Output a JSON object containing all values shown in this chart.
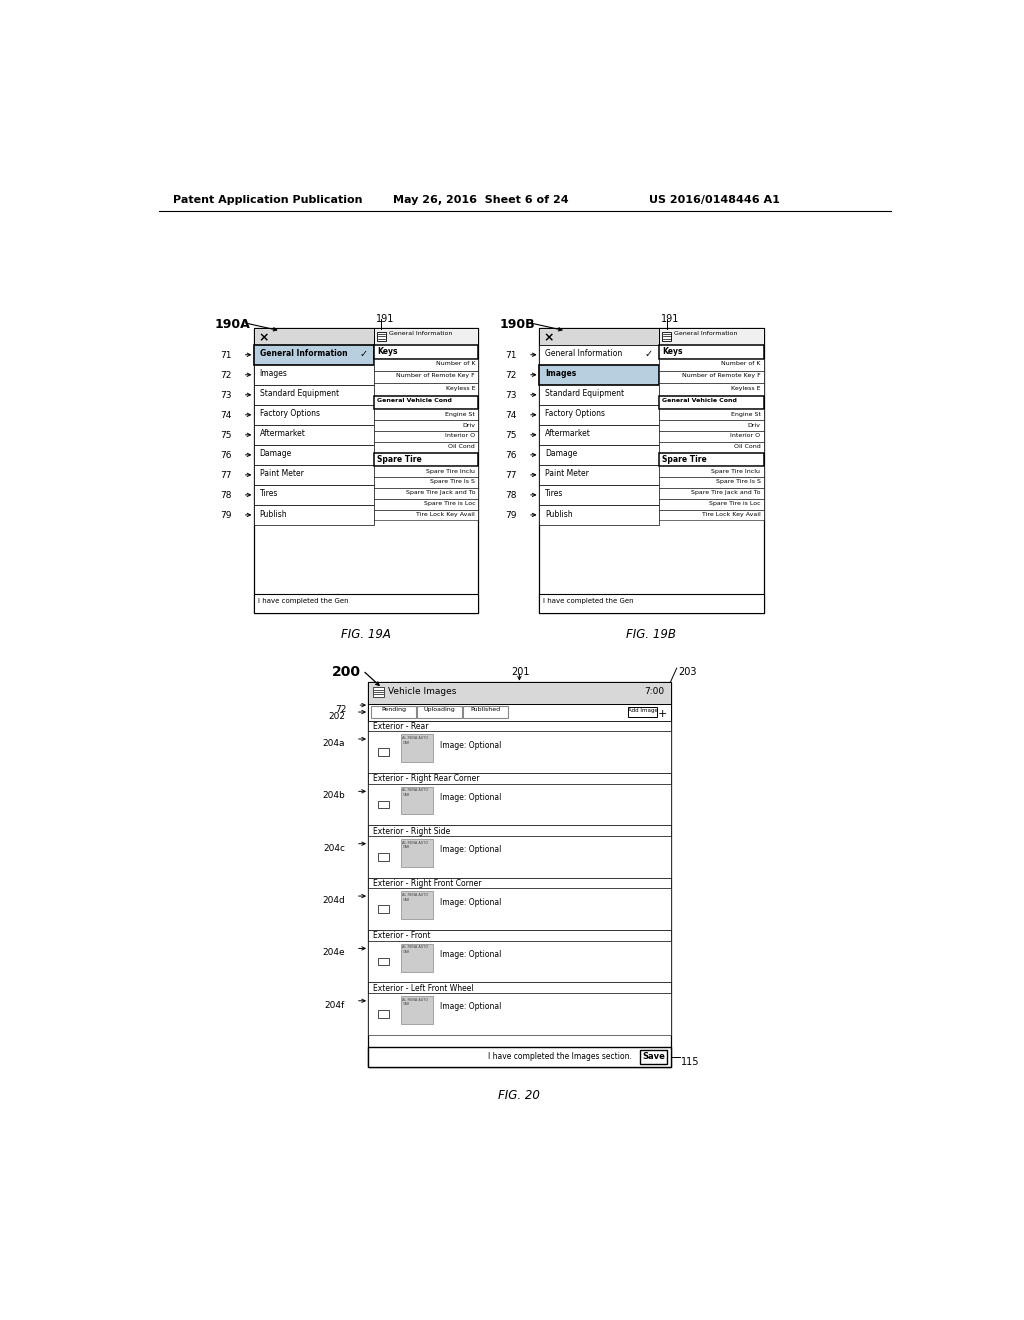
{
  "header_left": "Patent Application Publication",
  "header_center": "May 26, 2016  Sheet 6 of 24",
  "header_right": "US 2016/0148446 A1",
  "fig19a_label": "FIG. 19A",
  "fig19b_label": "FIG. 19B",
  "fig20_label": "FIG. 20",
  "bg_color": "#ffffff",
  "fig19a_title": "190A",
  "fig19b_title": "190B",
  "fig20_title": "200",
  "left_menu_items": [
    "General Information",
    "Images",
    "Standard Equipment",
    "Factory Options",
    "Aftermarket",
    "Damage",
    "Paint Meter",
    "Tires",
    "Publish"
  ],
  "left_menu_numbers": [
    "71",
    "72",
    "73",
    "74",
    "75",
    "76",
    "77",
    "78",
    "79"
  ],
  "keys_items": [
    "Number of K",
    "Number of Remote Key F",
    "Keyless E"
  ],
  "gvc_items": [
    "Engine St",
    "Driv",
    "Interior O",
    "Oil Cond"
  ],
  "spare_items": [
    "Spare Tire Inclu",
    "Spare Tire Is S",
    "Spare Tire Jack and To",
    "Spare Tire is Loc",
    "Tire Lock Key Avail"
  ],
  "spare_bottom": "I have completed the Gen",
  "fig20_header": "Vehicle Images",
  "fig20_header_right": "7:00",
  "fig20_tabs": "Pending  Uploading  Published",
  "fig20_add": "Add Image",
  "fig20_sections": [
    "Exterior - Rear",
    "Exterior - Right Rear Corner",
    "Exterior - Right Side",
    "Exterior - Right Front Corner",
    "Exterior - Front",
    "Exterior - Left Front Wheel"
  ],
  "fig20_refs": [
    "204a",
    "204b",
    "204c",
    "204d",
    "204e",
    "204f"
  ],
  "fig20_image_label": "Image: Optional",
  "fig20_bottom": "I have completed the Images section.",
  "fig20_save": "Save"
}
